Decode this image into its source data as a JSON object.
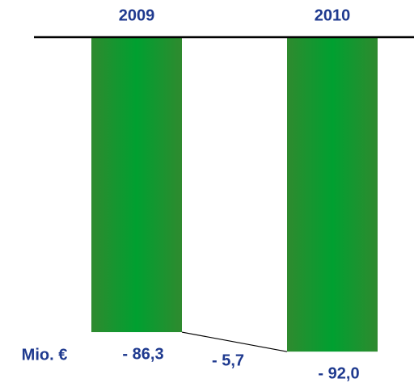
{
  "chart_data": {
    "type": "bar",
    "categories": [
      "2009",
      "2010"
    ],
    "values": [
      -86.3,
      -92.0
    ],
    "value_labels": [
      "- 86,3",
      "- 92,0"
    ],
    "color": "#00a030",
    "unit_label": "Mio. €",
    "difference_label": "- 5,7",
    "ylim": [
      -100,
      0
    ]
  }
}
